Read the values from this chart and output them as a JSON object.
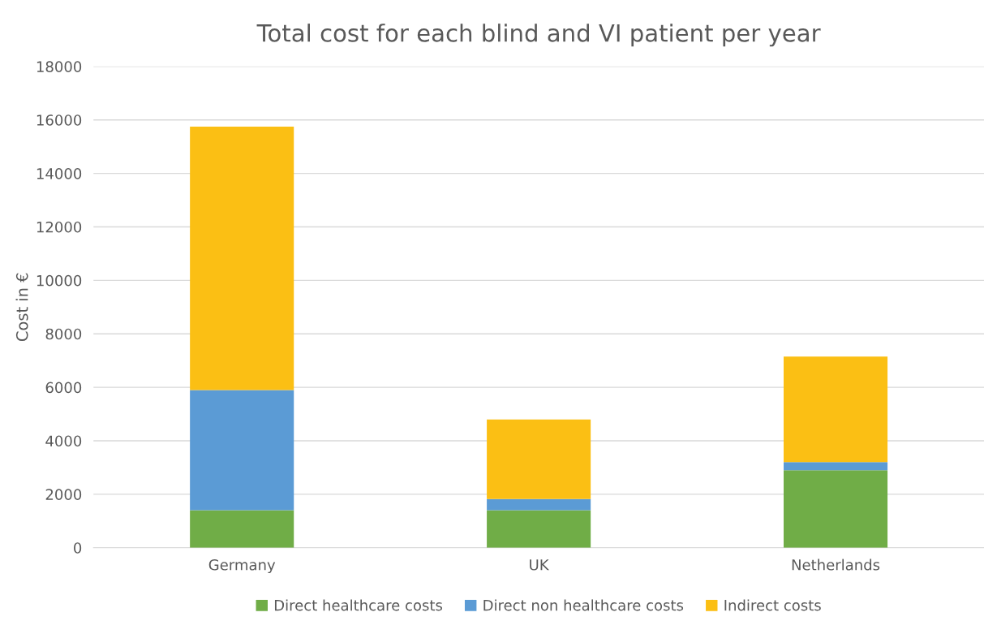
{
  "chart_data": {
    "type": "bar",
    "title": "Total cost for each blind and VI patient per year",
    "ylabel": "Cost in €",
    "categories": [
      "Germany",
      "UK",
      "Netherlands"
    ],
    "stacked": true,
    "series": [
      {
        "name": "Direct healthcare costs",
        "color": "#70ad47",
        "values": [
          1400,
          1400,
          2900
        ]
      },
      {
        "name": "Direct non healthcare costs",
        "color": "#5b9bd5",
        "values": [
          4500,
          420,
          300
        ]
      },
      {
        "name": "Indirect costs",
        "color": "#fbbf14",
        "values": [
          9850,
          2980,
          3950
        ]
      }
    ],
    "ylim": [
      0,
      18000
    ],
    "yticks": [
      0,
      2000,
      4000,
      6000,
      8000,
      10000,
      12000,
      14000,
      16000,
      18000
    ],
    "grid": "y",
    "legend": "bottom"
  }
}
